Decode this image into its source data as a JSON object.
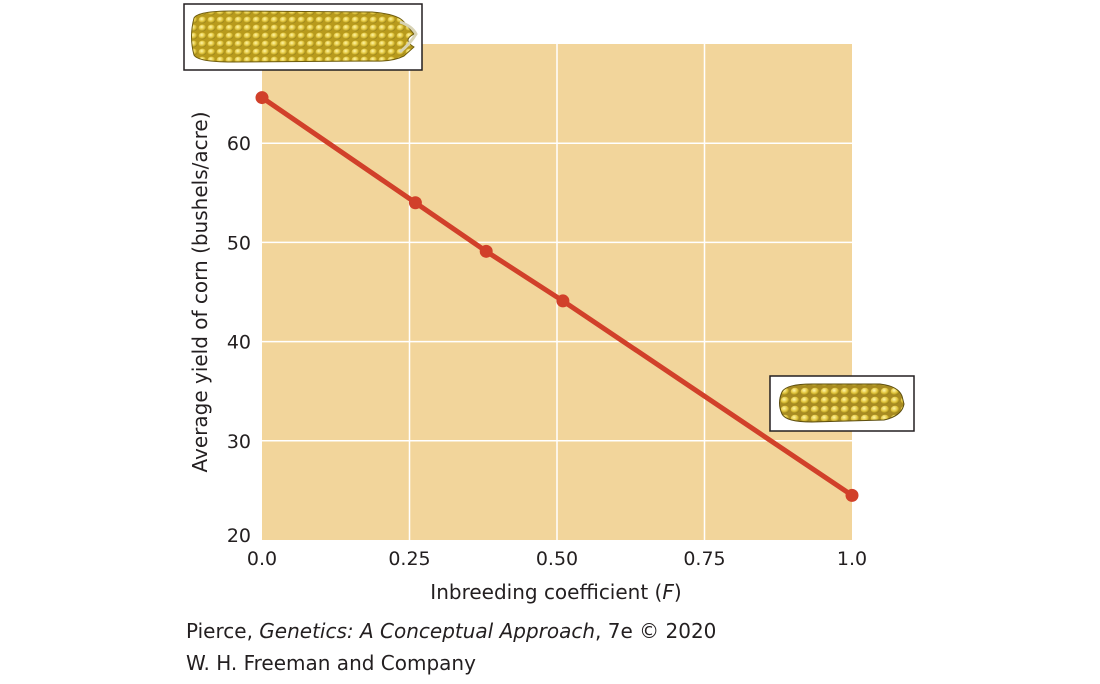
{
  "chart_data": {
    "type": "line",
    "xlabel_prefix": "Inbreeding coefficient (",
    "xlabel_var": "F",
    "xlabel_suffix": ")",
    "ylabel": "Average yield of corn (bushels/acre)",
    "xlim": [
      0,
      1.0
    ],
    "ylim": [
      20,
      70
    ],
    "x_ticks": [
      "0.0",
      "0.25",
      "0.50",
      "0.75",
      "1.0"
    ],
    "y_ticks": [
      "20",
      "30",
      "40",
      "50",
      "60"
    ],
    "grid": true,
    "series": [
      {
        "x": [
          0.0,
          0.26,
          0.38,
          0.51,
          1.0
        ],
        "y": [
          64.6,
          54.0,
          49.1,
          44.1,
          24.5
        ]
      }
    ],
    "colors": {
      "plot_bg": "#f2d59b",
      "line": "#d1402a",
      "grid": "#ffffff"
    }
  },
  "images": {
    "large_corn": "large corn ear photo",
    "small_corn": "small corn ear photo"
  },
  "credit": {
    "author": "Pierce, ",
    "book": "Genetics: A Conceptual Approach",
    "edition": ", 7e © 2020",
    "publisher": "W. H. Freeman and Company"
  }
}
